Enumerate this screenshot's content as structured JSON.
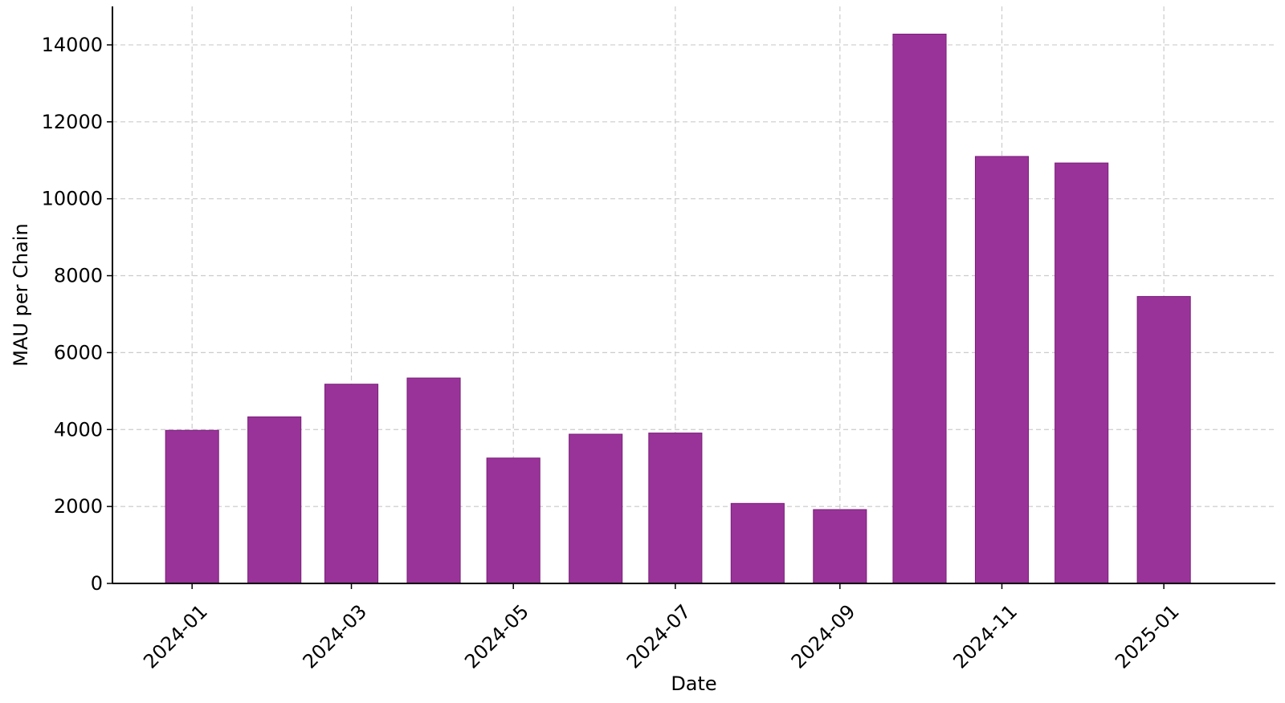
{
  "chart_data": {
    "type": "bar",
    "title": "",
    "xlabel": "Date",
    "ylabel": "MAU per Chain",
    "bar_color": "#993399",
    "grid_color": "#cccccc",
    "grid": true,
    "grid_style": "dashed",
    "legend": "none",
    "ylim": [
      0,
      15000
    ],
    "yticks": [
      0,
      2000,
      4000,
      6000,
      8000,
      10000,
      12000,
      14000
    ],
    "xlim": [
      "2023-12-02",
      "2025-02-12"
    ],
    "xticks": [
      "2024-01-01",
      "2024-03-01",
      "2024-05-01",
      "2024-07-01",
      "2024-09-01",
      "2024-11-01",
      "2025-01-01"
    ],
    "xtick_labels": [
      "2024-01",
      "2024-03",
      "2024-05",
      "2024-07",
      "2024-09",
      "2024-11",
      "2025-01"
    ],
    "x": [
      "2024-01-01",
      "2024-02-01",
      "2024-03-01",
      "2024-04-01",
      "2024-05-01",
      "2024-06-01",
      "2024-07-01",
      "2024-08-01",
      "2024-09-01",
      "2024-10-01",
      "2024-11-01",
      "2024-12-01",
      "2025-01-01"
    ],
    "values": [
      3980,
      4330,
      5180,
      5340,
      3260,
      3880,
      3910,
      2080,
      1920,
      14280,
      11100,
      10930,
      7460
    ]
  }
}
